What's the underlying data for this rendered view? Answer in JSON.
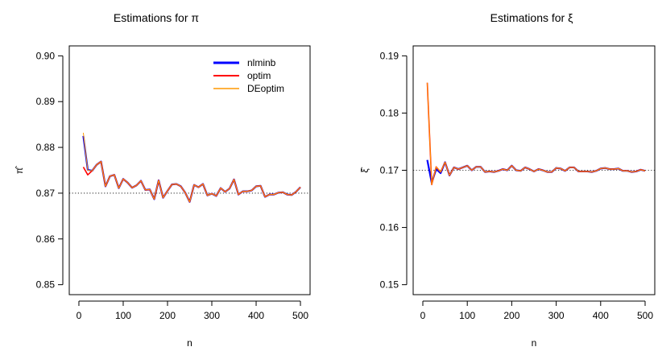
{
  "chart_data": [
    {
      "type": "line",
      "title": "Estimations for π",
      "xlabel": "n",
      "ylabel": "π̂",
      "xlim": [
        0,
        500
      ],
      "ylim": [
        0.85,
        0.9
      ],
      "x_ticks": [
        "0",
        "100",
        "200",
        "300",
        "400",
        "500"
      ],
      "y_ticks": [
        "0.85",
        "0.86",
        "0.87",
        "0.88",
        "0.89",
        "0.90"
      ],
      "reference_line": 0.87,
      "legend": {
        "position": "top-right"
      },
      "x": [
        10,
        20,
        30,
        40,
        50,
        60,
        70,
        80,
        90,
        100,
        110,
        120,
        130,
        140,
        150,
        160,
        170,
        180,
        190,
        200,
        210,
        220,
        230,
        240,
        250,
        260,
        270,
        280,
        290,
        300,
        310,
        320,
        330,
        340,
        350,
        360,
        370,
        380,
        390,
        400,
        410,
        420,
        430,
        440,
        450,
        460,
        470,
        480,
        490,
        500
      ],
      "series": [
        {
          "name": "nlminb",
          "color": "#0000ff",
          "values": [
            0.8825,
            0.8751,
            0.8749,
            0.8762,
            0.8769,
            0.8715,
            0.8737,
            0.874,
            0.8711,
            0.8731,
            0.8723,
            0.8712,
            0.8717,
            0.8727,
            0.8707,
            0.8708,
            0.8687,
            0.8728,
            0.869,
            0.8705,
            0.8719,
            0.872,
            0.8715,
            0.8701,
            0.8681,
            0.8718,
            0.8713,
            0.872,
            0.8695,
            0.8699,
            0.8694,
            0.8711,
            0.8703,
            0.871,
            0.873,
            0.8697,
            0.8704,
            0.8704,
            0.8706,
            0.8715,
            0.8716,
            0.8692,
            0.8697,
            0.8697,
            0.8701,
            0.8702,
            0.8697,
            0.8696,
            0.8703,
            0.8713
          ]
        },
        {
          "name": "optim",
          "color": "#ff0000",
          "values": [
            0.8757,
            0.874,
            0.8749,
            0.8762,
            0.8769,
            0.8715,
            0.8737,
            0.874,
            0.8711,
            0.8731,
            0.8723,
            0.8712,
            0.8717,
            0.8727,
            0.8707,
            0.8708,
            0.8687,
            0.8728,
            0.869,
            0.8705,
            0.8719,
            0.872,
            0.8715,
            0.8701,
            0.8681,
            0.8718,
            0.8713,
            0.872,
            0.8695,
            0.8699,
            0.8694,
            0.8711,
            0.8703,
            0.871,
            0.873,
            0.8697,
            0.8704,
            0.8704,
            0.8706,
            0.8715,
            0.8716,
            0.8692,
            0.8697,
            0.8697,
            0.8701,
            0.8702,
            0.8697,
            0.8696,
            0.8703,
            0.8713
          ]
        },
        {
          "name": "DEoptim",
          "color": "#ff9900",
          "values": [
            0.8832,
            0.875,
            0.8749,
            0.8762,
            0.8769,
            0.8715,
            0.8737,
            0.874,
            0.8711,
            0.8731,
            0.8723,
            0.8712,
            0.8717,
            0.8727,
            0.8707,
            0.8708,
            0.8687,
            0.8728,
            0.869,
            0.8705,
            0.8719,
            0.872,
            0.8715,
            0.8701,
            0.8681,
            0.8718,
            0.8713,
            0.872,
            0.8695,
            0.8699,
            0.8694,
            0.8711,
            0.8703,
            0.871,
            0.873,
            0.8697,
            0.8704,
            0.8704,
            0.8706,
            0.8715,
            0.8716,
            0.8692,
            0.8697,
            0.8697,
            0.8701,
            0.8702,
            0.8697,
            0.8696,
            0.8703,
            0.8713
          ]
        }
      ]
    },
    {
      "type": "line",
      "title": "Estimations for ξ",
      "xlabel": "n",
      "ylabel": "ξ̂",
      "xlim": [
        0,
        500
      ],
      "ylim": [
        0.15,
        0.19
      ],
      "x_ticks": [
        "0",
        "100",
        "200",
        "300",
        "400",
        "500"
      ],
      "y_ticks": [
        "0.15",
        "0.16",
        "0.17",
        "0.18",
        "0.19"
      ],
      "reference_line": 0.17,
      "x": [
        10,
        20,
        30,
        40,
        50,
        60,
        70,
        80,
        90,
        100,
        110,
        120,
        130,
        140,
        150,
        160,
        170,
        180,
        190,
        200,
        210,
        220,
        230,
        240,
        250,
        260,
        270,
        280,
        290,
        300,
        310,
        320,
        330,
        340,
        350,
        360,
        370,
        380,
        390,
        400,
        410,
        420,
        430,
        440,
        450,
        460,
        470,
        480,
        490,
        500
      ],
      "series": [
        {
          "name": "nlminb",
          "color": "#0000ff",
          "values": [
            0.1718,
            0.1678,
            0.1702,
            0.1695,
            0.1714,
            0.1691,
            0.1705,
            0.1702,
            0.1705,
            0.1708,
            0.17,
            0.1706,
            0.1706,
            0.1697,
            0.1698,
            0.1697,
            0.1699,
            0.1702,
            0.17,
            0.1708,
            0.17,
            0.1699,
            0.1705,
            0.1702,
            0.1698,
            0.1702,
            0.17,
            0.1697,
            0.1697,
            0.1704,
            0.1703,
            0.1699,
            0.1705,
            0.1705,
            0.1698,
            0.1698,
            0.1698,
            0.1697,
            0.1699,
            0.1703,
            0.1704,
            0.1702,
            0.1702,
            0.1703,
            0.1699,
            0.1699,
            0.1697,
            0.1698,
            0.1701,
            0.1699
          ]
        },
        {
          "name": "optim",
          "color": "#ff0000",
          "values": [
            0.1853,
            0.1675,
            0.1706,
            0.1697,
            0.1714,
            0.1691,
            0.1705,
            0.1702,
            0.1705,
            0.1708,
            0.17,
            0.1706,
            0.1706,
            0.1697,
            0.1698,
            0.1697,
            0.1699,
            0.1702,
            0.17,
            0.1708,
            0.17,
            0.1699,
            0.1705,
            0.1702,
            0.1698,
            0.1702,
            0.17,
            0.1697,
            0.1697,
            0.1704,
            0.1703,
            0.1699,
            0.1705,
            0.1705,
            0.1698,
            0.1698,
            0.1698,
            0.1697,
            0.1699,
            0.1703,
            0.1704,
            0.1702,
            0.1702,
            0.1703,
            0.1699,
            0.1699,
            0.1697,
            0.1698,
            0.1701,
            0.1699
          ]
        },
        {
          "name": "DEoptim",
          "color": "#ff9900",
          "values": [
            0.1853,
            0.1675,
            0.1706,
            0.1697,
            0.1714,
            0.1691,
            0.1705,
            0.1702,
            0.1705,
            0.1708,
            0.17,
            0.1706,
            0.1706,
            0.1697,
            0.1698,
            0.1697,
            0.1699,
            0.1702,
            0.17,
            0.1708,
            0.17,
            0.1699,
            0.1705,
            0.1702,
            0.1698,
            0.1702,
            0.17,
            0.1697,
            0.1697,
            0.1704,
            0.1703,
            0.1699,
            0.1705,
            0.1705,
            0.1698,
            0.1698,
            0.1698,
            0.1697,
            0.1699,
            0.1703,
            0.1704,
            0.1702,
            0.1702,
            0.1703,
            0.1699,
            0.1699,
            0.1697,
            0.1698,
            0.1701,
            0.1699
          ]
        }
      ]
    }
  ]
}
